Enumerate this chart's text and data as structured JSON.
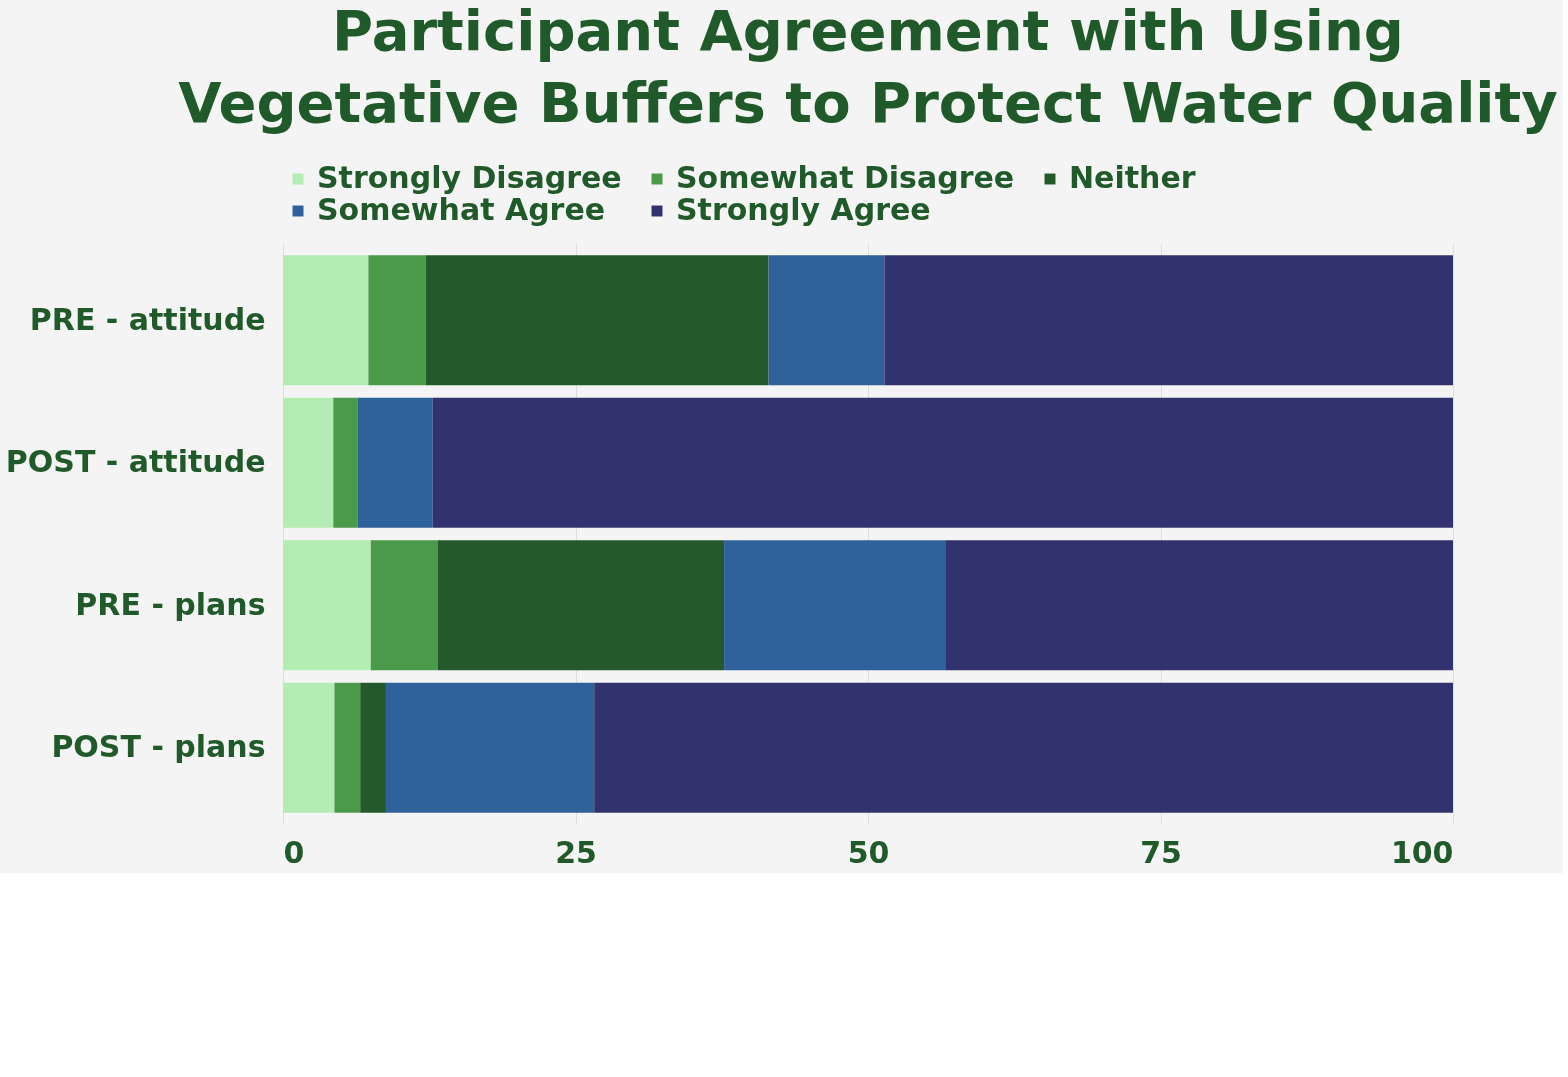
{
  "chart_data": {
    "type": "bar",
    "orientation": "horizontal",
    "stacked": true,
    "title": "Participant Agreement with Using\nVegetative Buffers to Protect Water Quality",
    "categories": [
      "PRE - attitude",
      "POST - attitude",
      "PRE - plans",
      "POST - plans"
    ],
    "series": [
      {
        "name": "Strongly Disagree",
        "color": "#b3edb3",
        "values": [
          7.3,
          4.3,
          7.5,
          4.4
        ]
      },
      {
        "name": "Somewhat Disagree",
        "color": "#4a9a4a",
        "values": [
          4.9,
          2.1,
          5.7,
          2.2
        ]
      },
      {
        "name": "Neither",
        "color": "#245a2b",
        "values": [
          29.3,
          0,
          24.5,
          2.2
        ]
      },
      {
        "name": "Somewhat Agree",
        "color": "#2f619b",
        "values": [
          9.9,
          6.4,
          18.9,
          17.8
        ]
      },
      {
        "name": "Strongly Agree",
        "color": "#32336e",
        "values": [
          48.6,
          87.2,
          43.4,
          73.4
        ]
      }
    ],
    "xlim": [
      0,
      100
    ],
    "xticks": [
      0,
      25,
      50,
      75,
      100
    ],
    "grid": "x",
    "legend": "top"
  }
}
